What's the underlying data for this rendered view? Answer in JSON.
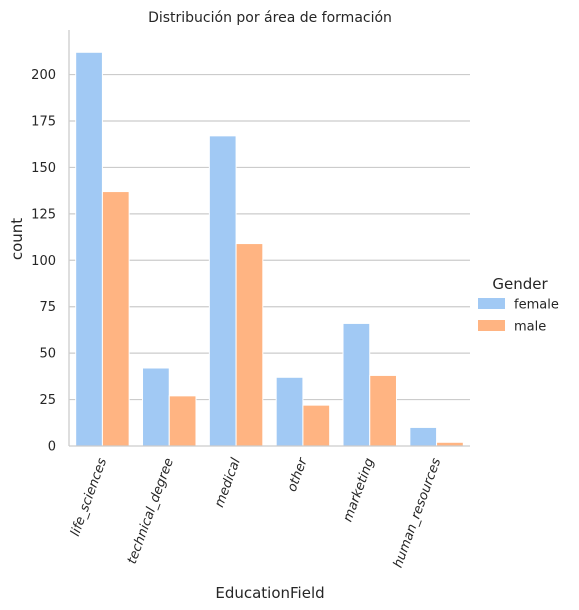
{
  "chart_data": {
    "type": "bar",
    "title": "Distribución por área de formación",
    "xlabel": "EducationField",
    "ylabel": "count",
    "categories": [
      "life_sciences",
      "technical_degree",
      "medical",
      "other",
      "marketing",
      "human_resources"
    ],
    "series": [
      {
        "name": "female",
        "values": [
          212,
          42,
          167,
          37,
          66,
          10
        ],
        "color": "#a1c9f4"
      },
      {
        "name": "male",
        "values": [
          137,
          27,
          109,
          22,
          38,
          2
        ],
        "color": "#ffb482"
      }
    ],
    "ylim": [
      0,
      224
    ],
    "yticks": [
      0,
      25,
      50,
      75,
      100,
      125,
      150,
      175,
      200
    ],
    "grid": "horizontal",
    "legend": {
      "title": "Gender",
      "placement": "right"
    }
  }
}
